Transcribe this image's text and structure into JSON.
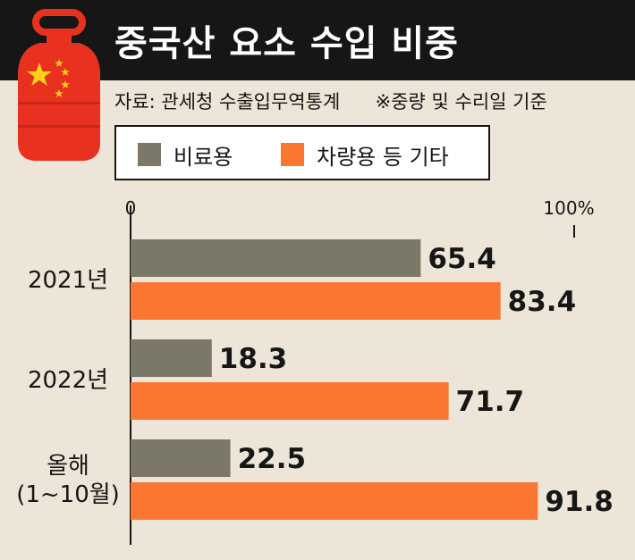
{
  "header": {
    "title": "중국산 요소 수입 비중",
    "source": "자료: 관세청 수출입무역통계",
    "note": "※중량 및 수리일 기준"
  },
  "colors": {
    "fertilizer": "#7b7868",
    "vehicle": "#fb7731",
    "highlight": "#e2361f",
    "title_bg": "#161616",
    "background": "#ede5d7"
  },
  "chart_data": {
    "type": "bar",
    "orientation": "horizontal",
    "title": "중국산 요소 수입 비중",
    "categories": [
      "2021년",
      "2022년",
      "올해\n(1~10월)"
    ],
    "series": [
      {
        "name": "비료용",
        "values": [
          65.4,
          18.3,
          22.5
        ]
      },
      {
        "name": "차량용 등 기타",
        "values": [
          83.4,
          71.7,
          91.8
        ]
      }
    ],
    "xlim": [
      0,
      100
    ],
    "ticks": [
      "0",
      "100%"
    ],
    "legend": "top",
    "grid": false
  }
}
